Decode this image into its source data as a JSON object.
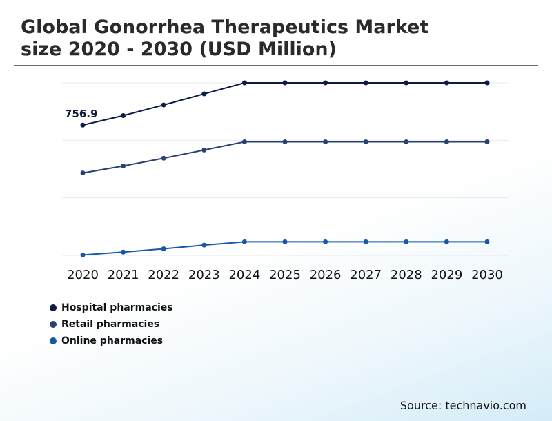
{
  "header": {
    "title_line1": "Global Gonorrhea Therapeutics Market",
    "title_line2": "size 2020 - 2030 (USD Million)"
  },
  "chart_data": {
    "type": "line",
    "title": "Global Gonorrhea Therapeutics Market size 2020 - 2030 (USD Million)",
    "x": [
      "2020",
      "2021",
      "2022",
      "2023",
      "2024",
      "2025",
      "2026",
      "2027",
      "2028",
      "2029",
      "2030"
    ],
    "series": [
      {
        "name": "Hospital pharmacies",
        "color": "#0c1d45",
        "values": [
          756.9,
          780,
          806,
          833,
          860,
          860,
          860,
          860,
          860,
          860,
          860
        ]
      },
      {
        "name": "Retail pharmacies",
        "color": "#2b4171",
        "values": [
          640,
          657,
          676,
          696,
          716,
          716,
          716,
          716,
          716,
          716,
          716
        ]
      },
      {
        "name": "Online pharmacies",
        "color": "#1558a6",
        "values": [
          440,
          447,
          455,
          464,
          472,
          472,
          472,
          472,
          472,
          472,
          472
        ]
      }
    ],
    "data_labels": [
      {
        "series": "Hospital pharmacies",
        "x": "2020",
        "text": "756.9"
      }
    ],
    "ylim": [
      439,
      860
    ],
    "grid": true,
    "y_tick_labels": false,
    "legend_position": "bottom-left"
  },
  "source": "Source: technavio.com"
}
